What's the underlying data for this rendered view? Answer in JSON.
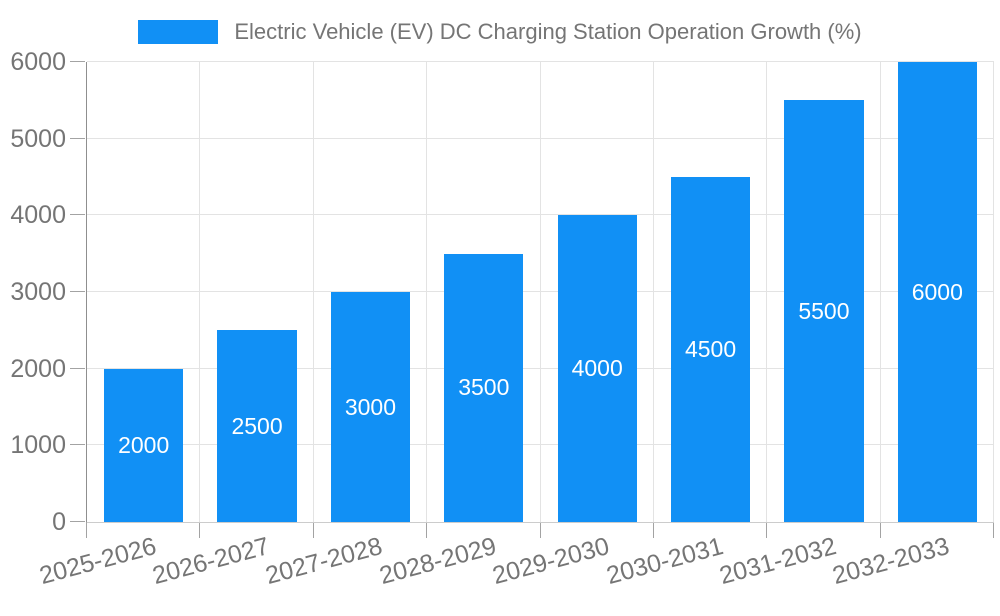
{
  "chart_data": {
    "type": "bar",
    "title": "",
    "legend": [
      "Electric Vehicle (EV) DC Charging Station Operation Growth (%)"
    ],
    "legend_position": "top",
    "categories": [
      "2025-2026",
      "2026-2027",
      "2027-2028",
      "2028-2029",
      "2029-2030",
      "2030-2031",
      "2031-2032",
      "2032-2033"
    ],
    "series": [
      {
        "name": "Electric Vehicle (EV) DC Charging Station Operation Growth (%)",
        "values": [
          2000,
          2500,
          3000,
          3500,
          4000,
          4500,
          5500,
          6000
        ]
      }
    ],
    "value_labels": [
      "2000",
      "2500",
      "3000",
      "3500",
      "4000",
      "4500",
      "5500",
      "6000"
    ],
    "xlabel": "",
    "ylabel": "",
    "ylim": [
      0,
      6000
    ],
    "y_ticks": [
      0,
      1000,
      2000,
      3000,
      4000,
      5000,
      6000
    ],
    "x_label_rotation_deg": -15,
    "grid": true,
    "colors": {
      "bar": "#1190F5",
      "bar_value_text": "#ffffff",
      "axis_text": "#757575",
      "legend_text": "#757575",
      "grid_line": "#e3e3e3",
      "y_axis_line": "#8f8f8f",
      "x_axis_line": "#cccccc",
      "tick": "#a3a3a3",
      "background": "#ffffff"
    }
  }
}
